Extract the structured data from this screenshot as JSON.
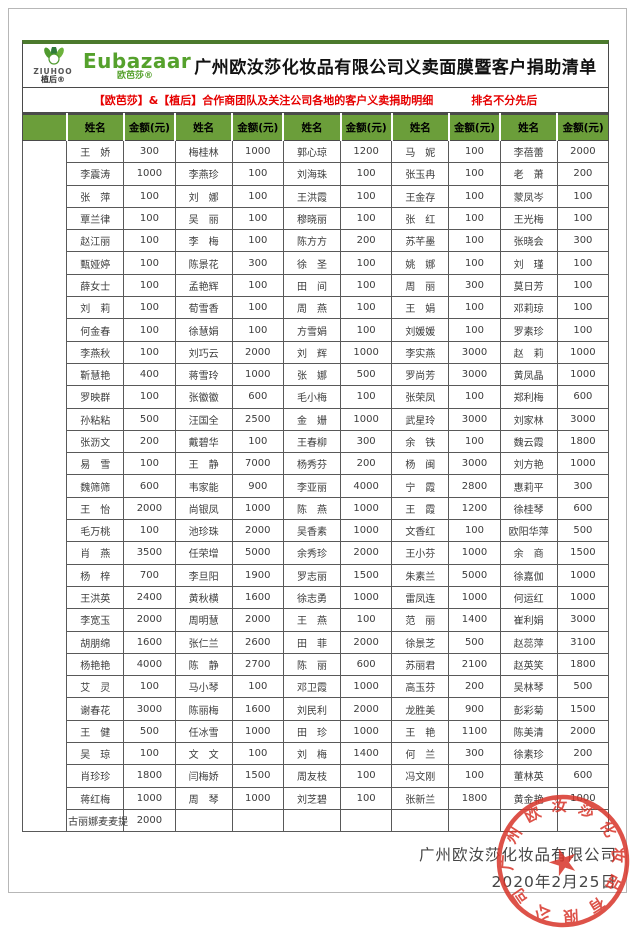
{
  "page": {
    "logo_ziuhoo": {
      "brand": "ZIUHOO",
      "sub": "植后®"
    },
    "logo_eubazaar": {
      "brand": "Eubazaar",
      "sub": "欧芭莎®"
    },
    "title": "广州欧汝莎化妆品有限公司义卖面膜暨客户捐助清单",
    "subtitle_left": "【欧芭莎】&【植后】合作商团队及关注公司各地的客户义卖捐助明细",
    "subtitle_right": "排名不分先后",
    "footer": {
      "company": "广州欧汝莎化妆品有限公司",
      "date": "2020年2月25日"
    },
    "stamp": {
      "text": "广州欧汝莎化妆品有限公司",
      "star": "★"
    }
  },
  "colors": {
    "header_green": "#6b9e3a",
    "top_bar_green": "#4c7a2d",
    "brand_green": "#55a12c",
    "subtitle_red": "#e60000",
    "seal_red": "#d8352a",
    "grid_border": "#595959"
  },
  "table": {
    "pairs": 5,
    "header": {
      "name": "姓名",
      "amount": "金额(元)"
    },
    "rows": [
      [
        "王　娇",
        "300",
        "梅桂林",
        "1000",
        "郭心琼",
        "1200",
        "马　妮",
        "100",
        "李蓓蕾",
        "2000"
      ],
      [
        "李震涛",
        "1000",
        "李燕珍",
        "100",
        "刘海珠",
        "100",
        "张玉冉",
        "100",
        "老　萧",
        "200"
      ],
      [
        "张　萍",
        "100",
        "刘　娜",
        "100",
        "王洪霞",
        "100",
        "王金存",
        "100",
        "蒙凤岑",
        "100"
      ],
      [
        "覃兰律",
        "100",
        "吴　丽",
        "100",
        "穆晓丽",
        "100",
        "张　红",
        "100",
        "王光梅",
        "100"
      ],
      [
        "赵江丽",
        "100",
        "李　梅",
        "100",
        "陈方方",
        "200",
        "苏芊墨",
        "100",
        "张晓会",
        "300"
      ],
      [
        "甄娅婷",
        "100",
        "陈景花",
        "300",
        "徐　圣",
        "100",
        "姚　娜",
        "100",
        "刘　瑾",
        "100"
      ],
      [
        "薛女士",
        "100",
        "孟艳辉",
        "100",
        "田　间",
        "100",
        "周　丽",
        "300",
        "莫日芳",
        "100"
      ],
      [
        "刘　莉",
        "100",
        "荀雪香",
        "100",
        "周　燕",
        "100",
        "王　娟",
        "100",
        "邓莉琼",
        "100"
      ],
      [
        "何金春",
        "100",
        "徐慧娟",
        "100",
        "方雪娟",
        "100",
        "刘媛媛",
        "100",
        "罗素珍",
        "100"
      ],
      [
        "李燕秋",
        "100",
        "刘巧云",
        "2000",
        "刘　辉",
        "1000",
        "李实燕",
        "3000",
        "赵　莉",
        "1000"
      ],
      [
        "靳慧艳",
        "400",
        "蒋雪玲",
        "1000",
        "张　娜",
        "500",
        "罗尚芳",
        "3000",
        "黄凤晶",
        "1000"
      ],
      [
        "罗映群",
        "100",
        "张徽徽",
        "600",
        "毛小梅",
        "100",
        "张荣凤",
        "100",
        "郑利梅",
        "600"
      ],
      [
        "孙粘粘",
        "500",
        "汪国全",
        "2500",
        "金　姗",
        "1000",
        "武星玲",
        "3000",
        "刘家林",
        "3000"
      ],
      [
        "张沥文",
        "200",
        "戴碧华",
        "100",
        "王春柳",
        "300",
        "余　铁",
        "100",
        "魏云霞",
        "1800"
      ],
      [
        "易　雪",
        "100",
        "王　静",
        "7000",
        "杨秀芬",
        "200",
        "杨　闽",
        "3000",
        "刘方艳",
        "1000"
      ],
      [
        "魏筛筛",
        "600",
        "韦家能",
        "900",
        "李亚丽",
        "4000",
        "宁　霞",
        "2800",
        "惠莉平",
        "300"
      ],
      [
        "王　怡",
        "2000",
        "尚银凤",
        "1000",
        "陈　燕",
        "1000",
        "王　霞",
        "1200",
        "徐桂琴",
        "600"
      ],
      [
        "毛万桃",
        "100",
        "池珍珠",
        "2000",
        "吴香素",
        "1000",
        "文香红",
        "100",
        "欧阳华萍",
        "500"
      ],
      [
        "肖　燕",
        "3500",
        "任荣增",
        "5000",
        "余秀珍",
        "2000",
        "王小芬",
        "1000",
        "余　商",
        "1500"
      ],
      [
        "杨　梓",
        "700",
        "李旦阳",
        "1900",
        "罗志丽",
        "1500",
        "朱素兰",
        "5000",
        "徐嘉伽",
        "1000"
      ],
      [
        "王洪英",
        "2400",
        "黄秋横",
        "1600",
        "徐志勇",
        "1000",
        "雷凤连",
        "1000",
        "何运红",
        "1000"
      ],
      [
        "李宽玉",
        "2000",
        "周明慧",
        "2000",
        "王　燕",
        "100",
        "范　丽",
        "1400",
        "崔利娟",
        "3000"
      ],
      [
        "胡朋绵",
        "1600",
        "张仁兰",
        "2600",
        "田　菲",
        "2000",
        "徐景芝",
        "500",
        "赵蕊萍",
        "3100"
      ],
      [
        "杨艳艳",
        "4000",
        "陈　静",
        "2700",
        "陈　丽",
        "600",
        "苏丽君",
        "2100",
        "赵英笑",
        "1800"
      ],
      [
        "艾　灵",
        "100",
        "马小琴",
        "100",
        "邓卫霞",
        "1000",
        "高玉芬",
        "200",
        "吴林琴",
        "500"
      ],
      [
        "谢春花",
        "3000",
        "陈丽梅",
        "1600",
        "刘民利",
        "2000",
        "龙胜美",
        "900",
        "彭彩菊",
        "1500"
      ],
      [
        "王　健",
        "500",
        "任冰雪",
        "1000",
        "田　珍",
        "1000",
        "王　艳",
        "1100",
        "陈美清",
        "2000"
      ],
      [
        "吴　琼",
        "100",
        "文　文",
        "100",
        "刘　梅",
        "1400",
        "何　兰",
        "300",
        "徐素珍",
        "200"
      ],
      [
        "肖珍珍",
        "1800",
        "闫梅娇",
        "1500",
        "周友枝",
        "100",
        "冯文刚",
        "100",
        "董林英",
        "600"
      ],
      [
        "蒋红梅",
        "1000",
        "周　琴",
        "1000",
        "刘芝碧",
        "100",
        "张新兰",
        "1800",
        "黄金艳",
        "1000"
      ],
      [
        "古丽娜麦麦提",
        "2000",
        "",
        "",
        "",
        "",
        "",
        "",
        "",
        ""
      ]
    ]
  }
}
